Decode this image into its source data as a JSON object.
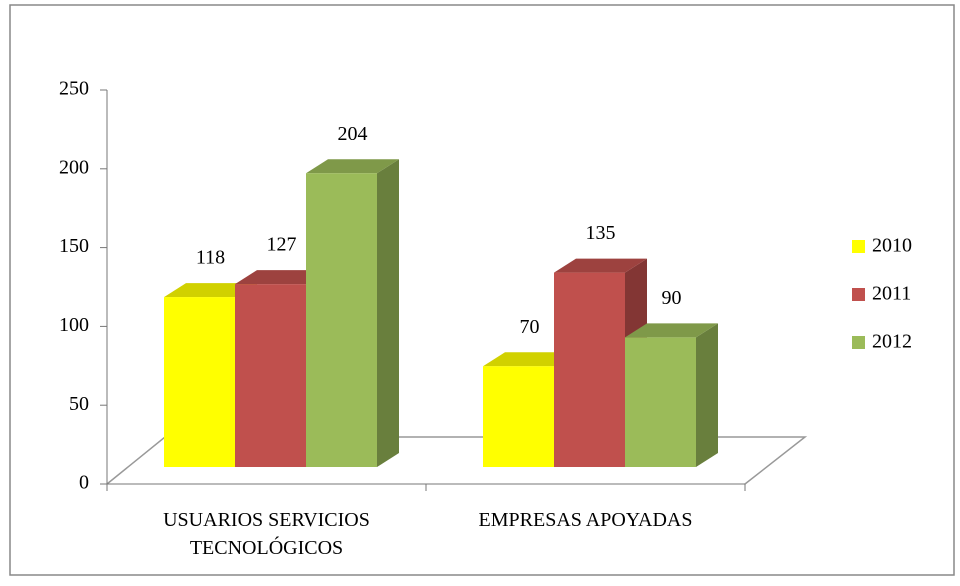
{
  "chart_data": {
    "type": "bar",
    "three_d": true,
    "categories": [
      "USUARIOS SERVICIOS TECNOLÓGICOS",
      "EMPRESAS APOYADAS"
    ],
    "series": [
      {
        "name": "2010",
        "color": "#ffff00",
        "values": [
          118,
          70
        ]
      },
      {
        "name": "2011",
        "color": "#c0504d",
        "values": [
          127,
          135
        ]
      },
      {
        "name": "2012",
        "color": "#9bbb59",
        "values": [
          204,
          90
        ]
      }
    ],
    "ylim": [
      0,
      250
    ],
    "yticks": [
      0,
      50,
      100,
      150,
      200,
      250
    ],
    "legend": "right"
  }
}
